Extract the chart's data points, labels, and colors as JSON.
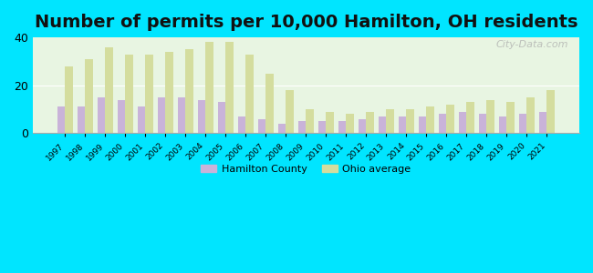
{
  "title": "Number of permits per 10,000 Hamilton, OH residents",
  "years": [
    1997,
    1998,
    1999,
    2000,
    2001,
    2002,
    2003,
    2004,
    2005,
    2006,
    2007,
    2008,
    2009,
    2010,
    2011,
    2012,
    2013,
    2014,
    2015,
    2016,
    2017,
    2018,
    2019,
    2020,
    2021
  ],
  "hamilton": [
    11,
    11,
    15,
    14,
    11,
    15,
    15,
    14,
    13,
    7,
    6,
    4,
    5,
    5,
    5,
    6,
    7,
    7,
    7,
    8,
    9,
    8,
    7,
    8,
    9
  ],
  "ohio": [
    28,
    31,
    36,
    33,
    33,
    34,
    35,
    38,
    38,
    33,
    25,
    18,
    10,
    9,
    8,
    9,
    10,
    10,
    11,
    12,
    13,
    14,
    13,
    15,
    18
  ],
  "hamilton_color": "#c9b3d9",
  "ohio_color": "#d4dd9e",
  "background_outer": "#00e5ff",
  "background_inner": "#e8f5e2",
  "ylim": [
    0,
    40
  ],
  "yticks": [
    0,
    20,
    40
  ],
  "legend_hamilton": "Hamilton County",
  "legend_ohio": "Ohio average",
  "title_fontsize": 14,
  "bar_width": 0.38,
  "watermark": "City-Data.com"
}
